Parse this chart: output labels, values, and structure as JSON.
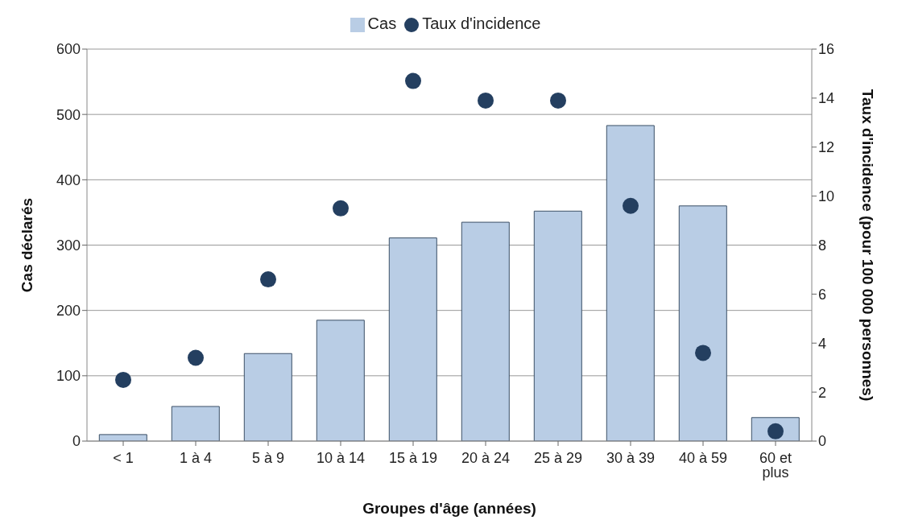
{
  "chart_data": {
    "type": "bar",
    "xlabel": "Groupes d'âge (années)",
    "ylabel": "Cas déclarés",
    "y2label": "Taux d'incidence (pour 100 000 personnes)",
    "categories": [
      "< 1",
      "1 à 4",
      "5 à 9",
      "10 à 14",
      "15 à 19",
      "20 à 24",
      "25 à 29",
      "30 à 39",
      "40 à 59",
      "60 et plus"
    ],
    "series": [
      {
        "name": "Cas",
        "color": "#b9cde5",
        "values": [
          10,
          53,
          134,
          185,
          311,
          335,
          352,
          483,
          360,
          36
        ]
      },
      {
        "name": "Taux d'incidence",
        "type": "scatter",
        "axis": "y2",
        "color": "#243f60",
        "marker": "circle",
        "values": [
          2.5,
          3.4,
          6.6,
          9.5,
          14.7,
          13.9,
          13.9,
          9.6,
          3.6,
          0.4
        ]
      }
    ],
    "ylim": [
      0,
      600
    ],
    "yticks": [
      0,
      100,
      200,
      300,
      400,
      500,
      600
    ],
    "y2lim": [
      0,
      16
    ],
    "y2ticks": [
      0,
      2,
      4,
      6,
      8,
      10,
      12,
      14,
      16
    ],
    "grid": "y",
    "legend": "top"
  }
}
